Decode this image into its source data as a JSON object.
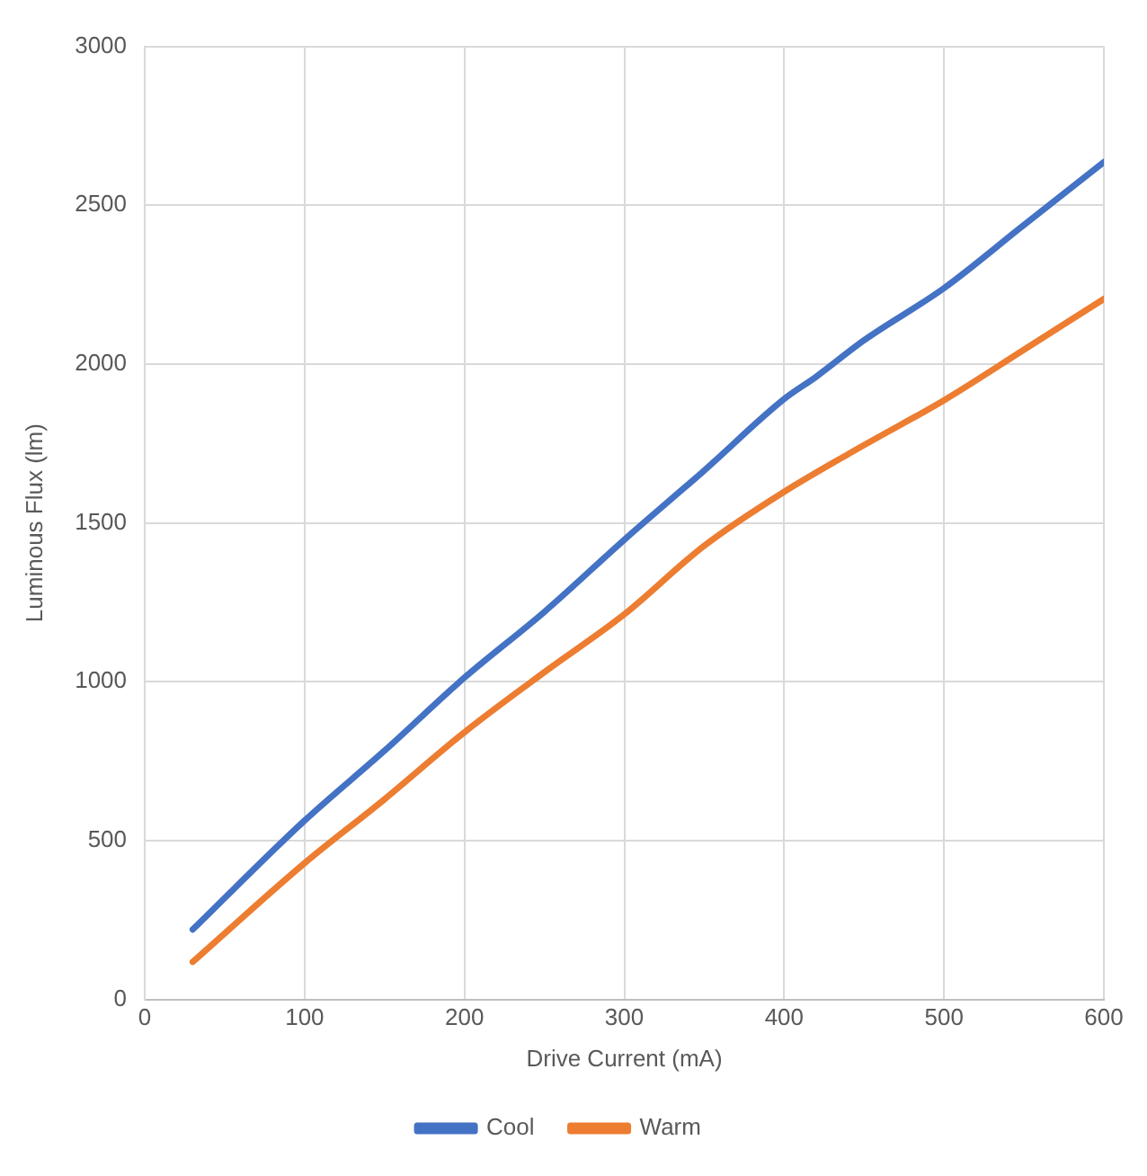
{
  "chart_data": {
    "type": "line",
    "xlabel": "Drive Current (mA)",
    "ylabel": "Luminous Flux (lm)",
    "xlim": [
      0,
      600
    ],
    "xticks": [
      0,
      100,
      200,
      300,
      400,
      500,
      600
    ],
    "ylim": [
      0,
      3000
    ],
    "yticks": [
      0,
      500,
      1000,
      1500,
      2000,
      2500,
      3000
    ],
    "grid": true,
    "legend": "bottom",
    "marker": "none",
    "line_style": "solid",
    "series": [
      {
        "name": "Cool",
        "color": "#4472c4",
        "x": [
          30,
          100,
          150,
          200,
          250,
          300,
          350,
          400,
          420,
          450,
          500,
          550,
          600
        ],
        "values": [
          220,
          563,
          783,
          1013,
          1220,
          1447,
          1665,
          1890,
          1960,
          2075,
          2239,
          2438,
          2636
        ]
      },
      {
        "name": "Warm",
        "color": "#ed7d31",
        "x": [
          30,
          100,
          150,
          200,
          250,
          300,
          350,
          400,
          450,
          500,
          550,
          600
        ],
        "values": [
          118,
          429,
          630,
          841,
          1030,
          1212,
          1428,
          1598,
          1745,
          1886,
          2045,
          2205
        ]
      }
    ]
  }
}
